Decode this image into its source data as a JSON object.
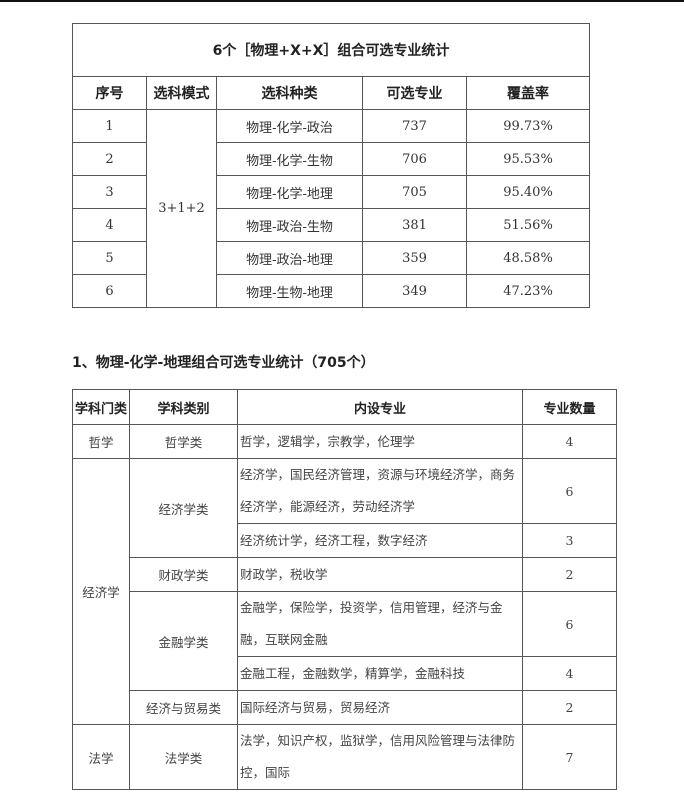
{
  "table1": {
    "title": "6个［物理+X+X］组合可选专业统计",
    "headers": [
      "序号",
      "选科模式",
      "选科种类",
      "可选专业",
      "覆盖率"
    ],
    "mode": "3+1+2",
    "rows": [
      {
        "no": "1",
        "combo": "物理-化学-政治",
        "count": "737",
        "coverage": "99.73%"
      },
      {
        "no": "2",
        "combo": "物理-化学-生物",
        "count": "706",
        "coverage": "95.53%"
      },
      {
        "no": "3",
        "combo": "物理-化学-地理",
        "count": "705",
        "coverage": "95.40%"
      },
      {
        "no": "4",
        "combo": "物理-政治-生物",
        "count": "381",
        "coverage": "51.56%"
      },
      {
        "no": "5",
        "combo": "物理-政治-地理",
        "count": "359",
        "coverage": "48.58%"
      },
      {
        "no": "6",
        "combo": "物理-生物-地理",
        "count": "349",
        "coverage": "47.23%"
      }
    ]
  },
  "section_heading": "1、物理-化学-地理组合可选专业统计（705个）",
  "table2": {
    "headers": [
      "学科门类",
      "学科类别",
      "内设专业",
      "专业数量"
    ],
    "categories": [
      {
        "name": "哲学",
        "groups": [
          {
            "name": "哲学类",
            "rows": [
              {
                "majors": "哲学，逻辑学，宗教学，伦理学",
                "count": "4"
              }
            ]
          }
        ]
      },
      {
        "name": "经济学",
        "groups": [
          {
            "name": "经济学类",
            "rows": [
              {
                "majors": "经济学，国民经济管理，资源与环境经济学，商务经济学，能源经济，劳动经济学",
                "count": "6"
              },
              {
                "majors": "经济统计学，经济工程，数字经济",
                "count": "3"
              }
            ]
          },
          {
            "name": "财政学类",
            "rows": [
              {
                "majors": "财政学，税收学",
                "count": "2"
              }
            ]
          },
          {
            "name": "金融学类",
            "rows": [
              {
                "majors": "金融学，保险学，投资学，信用管理，经济与金融，互联网金融",
                "count": "6"
              },
              {
                "majors": "金融工程，金融数学，精算学，金融科技",
                "count": "4"
              }
            ]
          },
          {
            "name": "经济与贸易类",
            "rows": [
              {
                "majors": "国际经济与贸易，贸易经济",
                "count": "2"
              }
            ]
          }
        ]
      },
      {
        "name": "法学",
        "groups": [
          {
            "name": "法学类",
            "rows": [
              {
                "majors": "法学，知识产权，监狱学，信用风险管理与法律防控，国际",
                "count": "7"
              }
            ]
          }
        ]
      }
    ]
  }
}
